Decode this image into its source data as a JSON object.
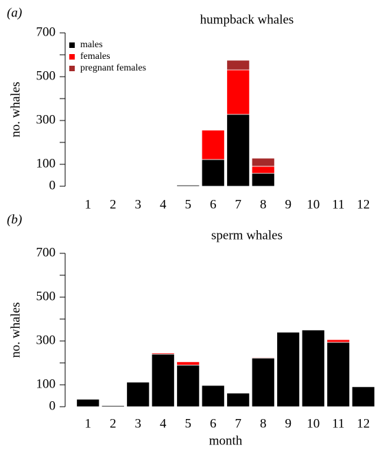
{
  "chart_data": [
    {
      "type": "bar",
      "stacked": true,
      "panel_label": "(a)",
      "title": "humpback whales",
      "ylabel": "no. whales",
      "categories": [
        "1",
        "2",
        "3",
        "4",
        "5",
        "6",
        "7",
        "8",
        "9",
        "10",
        "11",
        "12"
      ],
      "series": [
        {
          "name": "males",
          "color": "#000000",
          "values": [
            0,
            0,
            0,
            0,
            5,
            122,
            328,
            59,
            0,
            0,
            0,
            0
          ]
        },
        {
          "name": "females",
          "color": "#ff0000",
          "values": [
            0,
            0,
            0,
            0,
            0,
            134,
            203,
            32,
            0,
            0,
            0,
            0
          ]
        },
        {
          "name": "pregnant females",
          "color": "#a52a2a",
          "values": [
            0,
            0,
            0,
            0,
            0,
            0,
            44,
            37,
            0,
            0,
            0,
            0
          ]
        }
      ],
      "ylim": [
        0,
        700
      ],
      "yticks": [
        0,
        100,
        300,
        500,
        700
      ],
      "minor_yticks": [
        200,
        400,
        600
      ],
      "legend": "upper left"
    },
    {
      "type": "bar",
      "stacked": true,
      "panel_label": "(b)",
      "title": "sperm whales",
      "ylabel": "no. whales",
      "xlabel": "month",
      "categories": [
        "1",
        "2",
        "3",
        "4",
        "5",
        "6",
        "7",
        "8",
        "9",
        "10",
        "11",
        "12"
      ],
      "series": [
        {
          "color": "#000000",
          "values": [
            34,
            5,
            112,
            240,
            190,
            97,
            62,
            222,
            340,
            350,
            294,
            91
          ]
        },
        {
          "color": "#ff0000",
          "values": [
            0,
            0,
            0,
            5,
            15,
            0,
            0,
            3,
            0,
            0,
            12,
            0
          ]
        }
      ],
      "ylim": [
        0,
        700
      ],
      "yticks": [
        0,
        100,
        300,
        500,
        700
      ],
      "minor_yticks": [
        200,
        400,
        600
      ]
    }
  ]
}
